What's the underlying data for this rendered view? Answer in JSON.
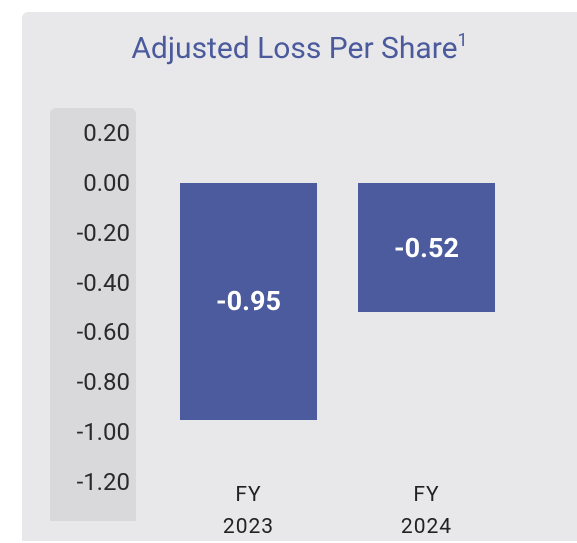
{
  "chart_data": {
    "type": "bar",
    "title": "Adjusted Loss Per Share",
    "title_footnote": "1",
    "categories": [
      "FY 2023",
      "FY 2024"
    ],
    "values": [
      -0.95,
      -0.52
    ],
    "color": "#4b5b9e",
    "ylim": [
      -1.2,
      0.2
    ],
    "yticks": [
      {
        "value": 0.2,
        "label": "0.20"
      },
      {
        "value": 0,
        "label": "0.00"
      },
      {
        "value": -0.2,
        "label": "-0.20"
      },
      {
        "value": -0.4,
        "label": "-0.40"
      },
      {
        "value": -0.6,
        "label": "-0.60"
      },
      {
        "value": -0.8,
        "label": "-0.80"
      },
      {
        "value": -1.0,
        "label": "-1.00"
      },
      {
        "value": -1.2,
        "label": "-1.20"
      }
    ],
    "grid": false
  }
}
